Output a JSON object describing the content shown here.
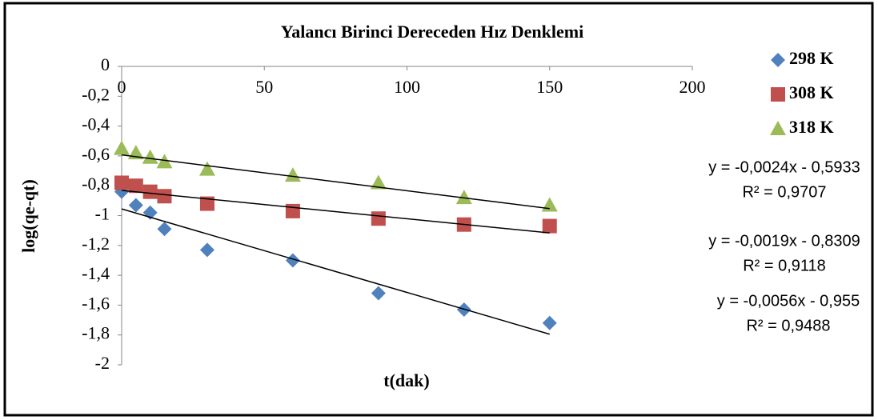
{
  "chart_data": {
    "type": "scatter",
    "title": "Yalancı Birinci Dereceden Hız Denklemi",
    "x_label": "t(dak)",
    "y_label": "log(qe-qt)",
    "xlim": [
      0,
      200
    ],
    "xticks": [
      0,
      50,
      100,
      150,
      200
    ],
    "ylim": [
      -2,
      0
    ],
    "yticks": [
      0,
      {
        "value": -0.2,
        "label": "-0,2"
      },
      {
        "value": -0.4,
        "label": "-0,4"
      },
      {
        "value": -0.6,
        "label": "-0,6"
      },
      {
        "value": -0.8,
        "label": "-0,8"
      },
      -1,
      {
        "value": -1.2,
        "label": "-1,2"
      },
      {
        "value": -1.4,
        "label": "-1,4"
      },
      {
        "value": -1.6,
        "label": "-1,6"
      },
      {
        "value": -1.8,
        "label": "-1,8"
      },
      -2
    ],
    "grid": false,
    "legend": "right",
    "series": [
      {
        "name": "298 K",
        "color": "#4f81bd",
        "marker": "diamond",
        "x": [
          0,
          5,
          10,
          15,
          30,
          60,
          90,
          120,
          150
        ],
        "values": [
          -0.84,
          -0.93,
          -0.98,
          -1.09,
          -1.23,
          -1.3,
          -1.52,
          -1.63,
          -1.72
        ]
      },
      {
        "name": "308 K",
        "color": "#c0504d",
        "marker": "square",
        "x": [
          0,
          5,
          10,
          15,
          30,
          60,
          90,
          120,
          150
        ],
        "values": [
          -0.78,
          -0.8,
          -0.84,
          -0.87,
          -0.92,
          -0.97,
          -1.02,
          -1.06,
          -1.07
        ]
      },
      {
        "name": "318 K",
        "color": "#9bbb59",
        "marker": "triangle",
        "x": [
          0,
          5,
          10,
          15,
          30,
          60,
          90,
          120,
          150
        ],
        "values": [
          -0.55,
          -0.58,
          -0.61,
          -0.64,
          -0.69,
          -0.73,
          -0.78,
          -0.88,
          -0.93
        ]
      }
    ],
    "trendlines": [
      {
        "slope": -0.0024,
        "intercept": -0.5933,
        "equation": "y = -0,0024x - 0,5933",
        "r2": "R² = 0,9707"
      },
      {
        "slope": -0.0019,
        "intercept": -0.8309,
        "equation": "y = -0,0019x - 0,8309",
        "r2": "R² = 0,9118"
      },
      {
        "slope": -0.0056,
        "intercept": -0.955,
        "equation": "y = -0,0056x - 0,955",
        "r2": "R² = 0,9488"
      }
    ]
  }
}
